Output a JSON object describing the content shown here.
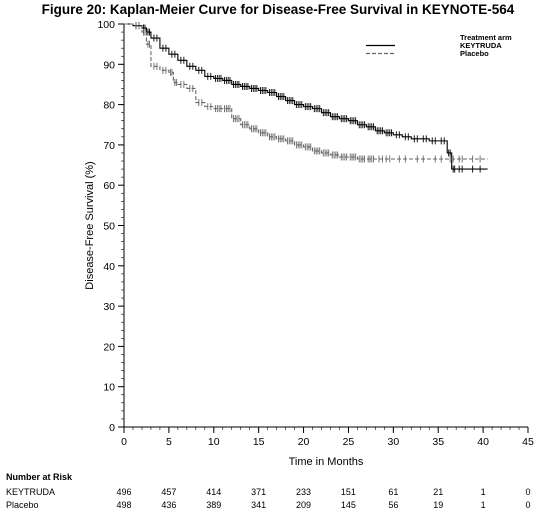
{
  "figure_title": "Figure 20: Kaplan-Meier Curve for Disease-Free Survival in KEYNOTE-564",
  "chart_data": {
    "type": "line",
    "title": "Figure 20: Kaplan-Meier Curve for Disease-Free Survival in KEYNOTE-564",
    "xlabel": "Time in Months",
    "ylabel": "Disease-Free Survival (%)",
    "xlim": [
      0,
      45
    ],
    "ylim": [
      0,
      100
    ],
    "x_ticks": [
      0,
      5,
      10,
      15,
      20,
      25,
      30,
      35,
      40,
      45
    ],
    "y_ticks": [
      0,
      10,
      20,
      30,
      40,
      50,
      60,
      70,
      80,
      90,
      100
    ],
    "grid": false,
    "legend": {
      "title": "Treatment arm",
      "placement": "top-right"
    },
    "series": [
      {
        "name": "KEYTRUDA",
        "style": "solid",
        "color": "#000000",
        "x": [
          0,
          1,
          2,
          2.5,
          3,
          4,
          5,
          6,
          7,
          8,
          9,
          10,
          11,
          12,
          13,
          14,
          15,
          16,
          17,
          18,
          19,
          20,
          21,
          22,
          23,
          24,
          25,
          26,
          27,
          28,
          29,
          30,
          31,
          32,
          33,
          34,
          35,
          36,
          36.5,
          37,
          38,
          40.5
        ],
        "y": [
          100,
          99.6,
          99,
          98,
          96.5,
          94,
          92.5,
          91,
          89.5,
          88.5,
          87,
          86.5,
          86,
          85,
          84.5,
          84,
          83.5,
          83,
          82,
          81,
          80,
          79.5,
          79,
          78,
          77,
          76.5,
          76,
          75,
          74.5,
          73.5,
          73,
          72.5,
          72,
          71.5,
          71.5,
          71,
          71,
          68,
          64,
          64,
          64,
          64
        ]
      },
      {
        "name": "Placebo",
        "style": "dashed",
        "color": "#666666",
        "x": [
          0,
          1,
          2,
          2.5,
          3,
          4,
          5,
          5.5,
          6,
          7,
          8,
          9,
          10,
          11,
          12,
          13,
          14,
          15,
          16,
          17,
          18,
          19,
          20,
          21,
          22,
          23,
          24,
          25,
          26,
          27,
          28,
          30,
          32,
          34,
          36,
          37,
          38,
          40.5
        ],
        "y": [
          100,
          99.5,
          98,
          95,
          89.5,
          88.5,
          88,
          85.5,
          85,
          84,
          80.5,
          79.5,
          79,
          79,
          76.5,
          75,
          74,
          73,
          72,
          71.5,
          71,
          70,
          69.5,
          68.5,
          68,
          67.5,
          67,
          67,
          66.5,
          66.5,
          66.5,
          66.5,
          66.5,
          66.5,
          66.5,
          66.5,
          66.5,
          66.5
        ]
      }
    ],
    "at_risk": {
      "header": "Number at Risk",
      "times": [
        0,
        5,
        10,
        15,
        20,
        25,
        30,
        35,
        40,
        45
      ],
      "rows": [
        {
          "label": "KEYTRUDA",
          "counts": [
            "496",
            "457",
            "414",
            "371",
            "233",
            "151",
            "61",
            "21",
            "1",
            "0"
          ]
        },
        {
          "label": "Placebo",
          "counts": [
            "498",
            "436",
            "389",
            "341",
            "209",
            "145",
            "56",
            "19",
            "1",
            "0"
          ]
        }
      ]
    }
  }
}
